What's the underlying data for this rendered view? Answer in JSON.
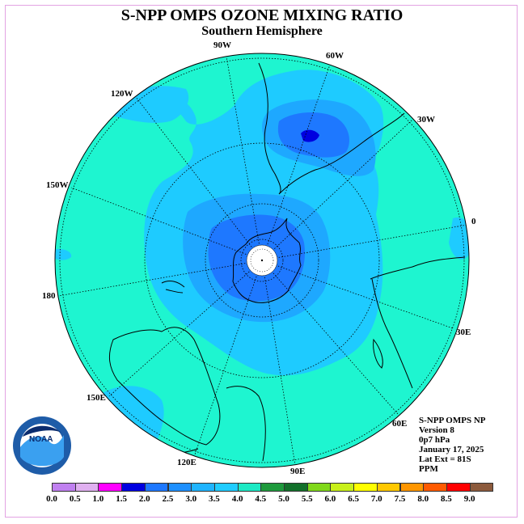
{
  "title": "S-NPP OMPS OZONE MIXING RATIO",
  "subtitle": "Southern Hemisphere",
  "longitude_labels": {
    "w90": "90W",
    "w60": "60W",
    "w30": "30W",
    "w120": "120W",
    "w150": "150W",
    "lon0": "0",
    "lon180": "180",
    "e30": "30E",
    "e60": "60E",
    "e90": "90E",
    "e120": "120E",
    "e150": "150E"
  },
  "logo": {
    "text": "NOAA",
    "ring_text": "NATIONAL OCEANIC AND ATMOSPHERIC ADMINISTRATION · U.S. DEPARTMENT OF COMMERCE"
  },
  "info": {
    "line1": "S-NPP OMPS NP",
    "line2": "Version 8",
    "line3": "0p7 hPa",
    "line4": "January 17, 2025",
    "line5": "Lat Ext = 81S",
    "line6": "PPM"
  },
  "legend": {
    "ticks": [
      "0.0",
      "0.5",
      "1.0",
      "1.5",
      "2.0",
      "2.5",
      "3.0",
      "3.5",
      "4.0",
      "4.5",
      "5.0",
      "5.5",
      "6.0",
      "6.5",
      "7.0",
      "7.5",
      "8.0",
      "8.5",
      "9.0"
    ],
    "colors": [
      "#c080f0",
      "#e0b0f0",
      "#ff00ff",
      "#0000e0",
      "#1e78ff",
      "#1e90ff",
      "#1fb4ff",
      "#20ccff",
      "#1de9c4",
      "#1e9a3c",
      "#12702a",
      "#80d81a",
      "#c8f01a",
      "#ffff00",
      "#ffc800",
      "#ff9600",
      "#ff5a00",
      "#ff0000",
      "#8c5a3c"
    ]
  },
  "field_colors": {
    "level_3_5_to_4_0": "#1ef5d0",
    "level_3_0_to_3_5": "#1ecbff",
    "level_2_5_to_3_0": "#1ea8ff",
    "level_2_0_to_2_5": "#1e78ff",
    "level_1_5_to_2_0": "#0000e0"
  }
}
